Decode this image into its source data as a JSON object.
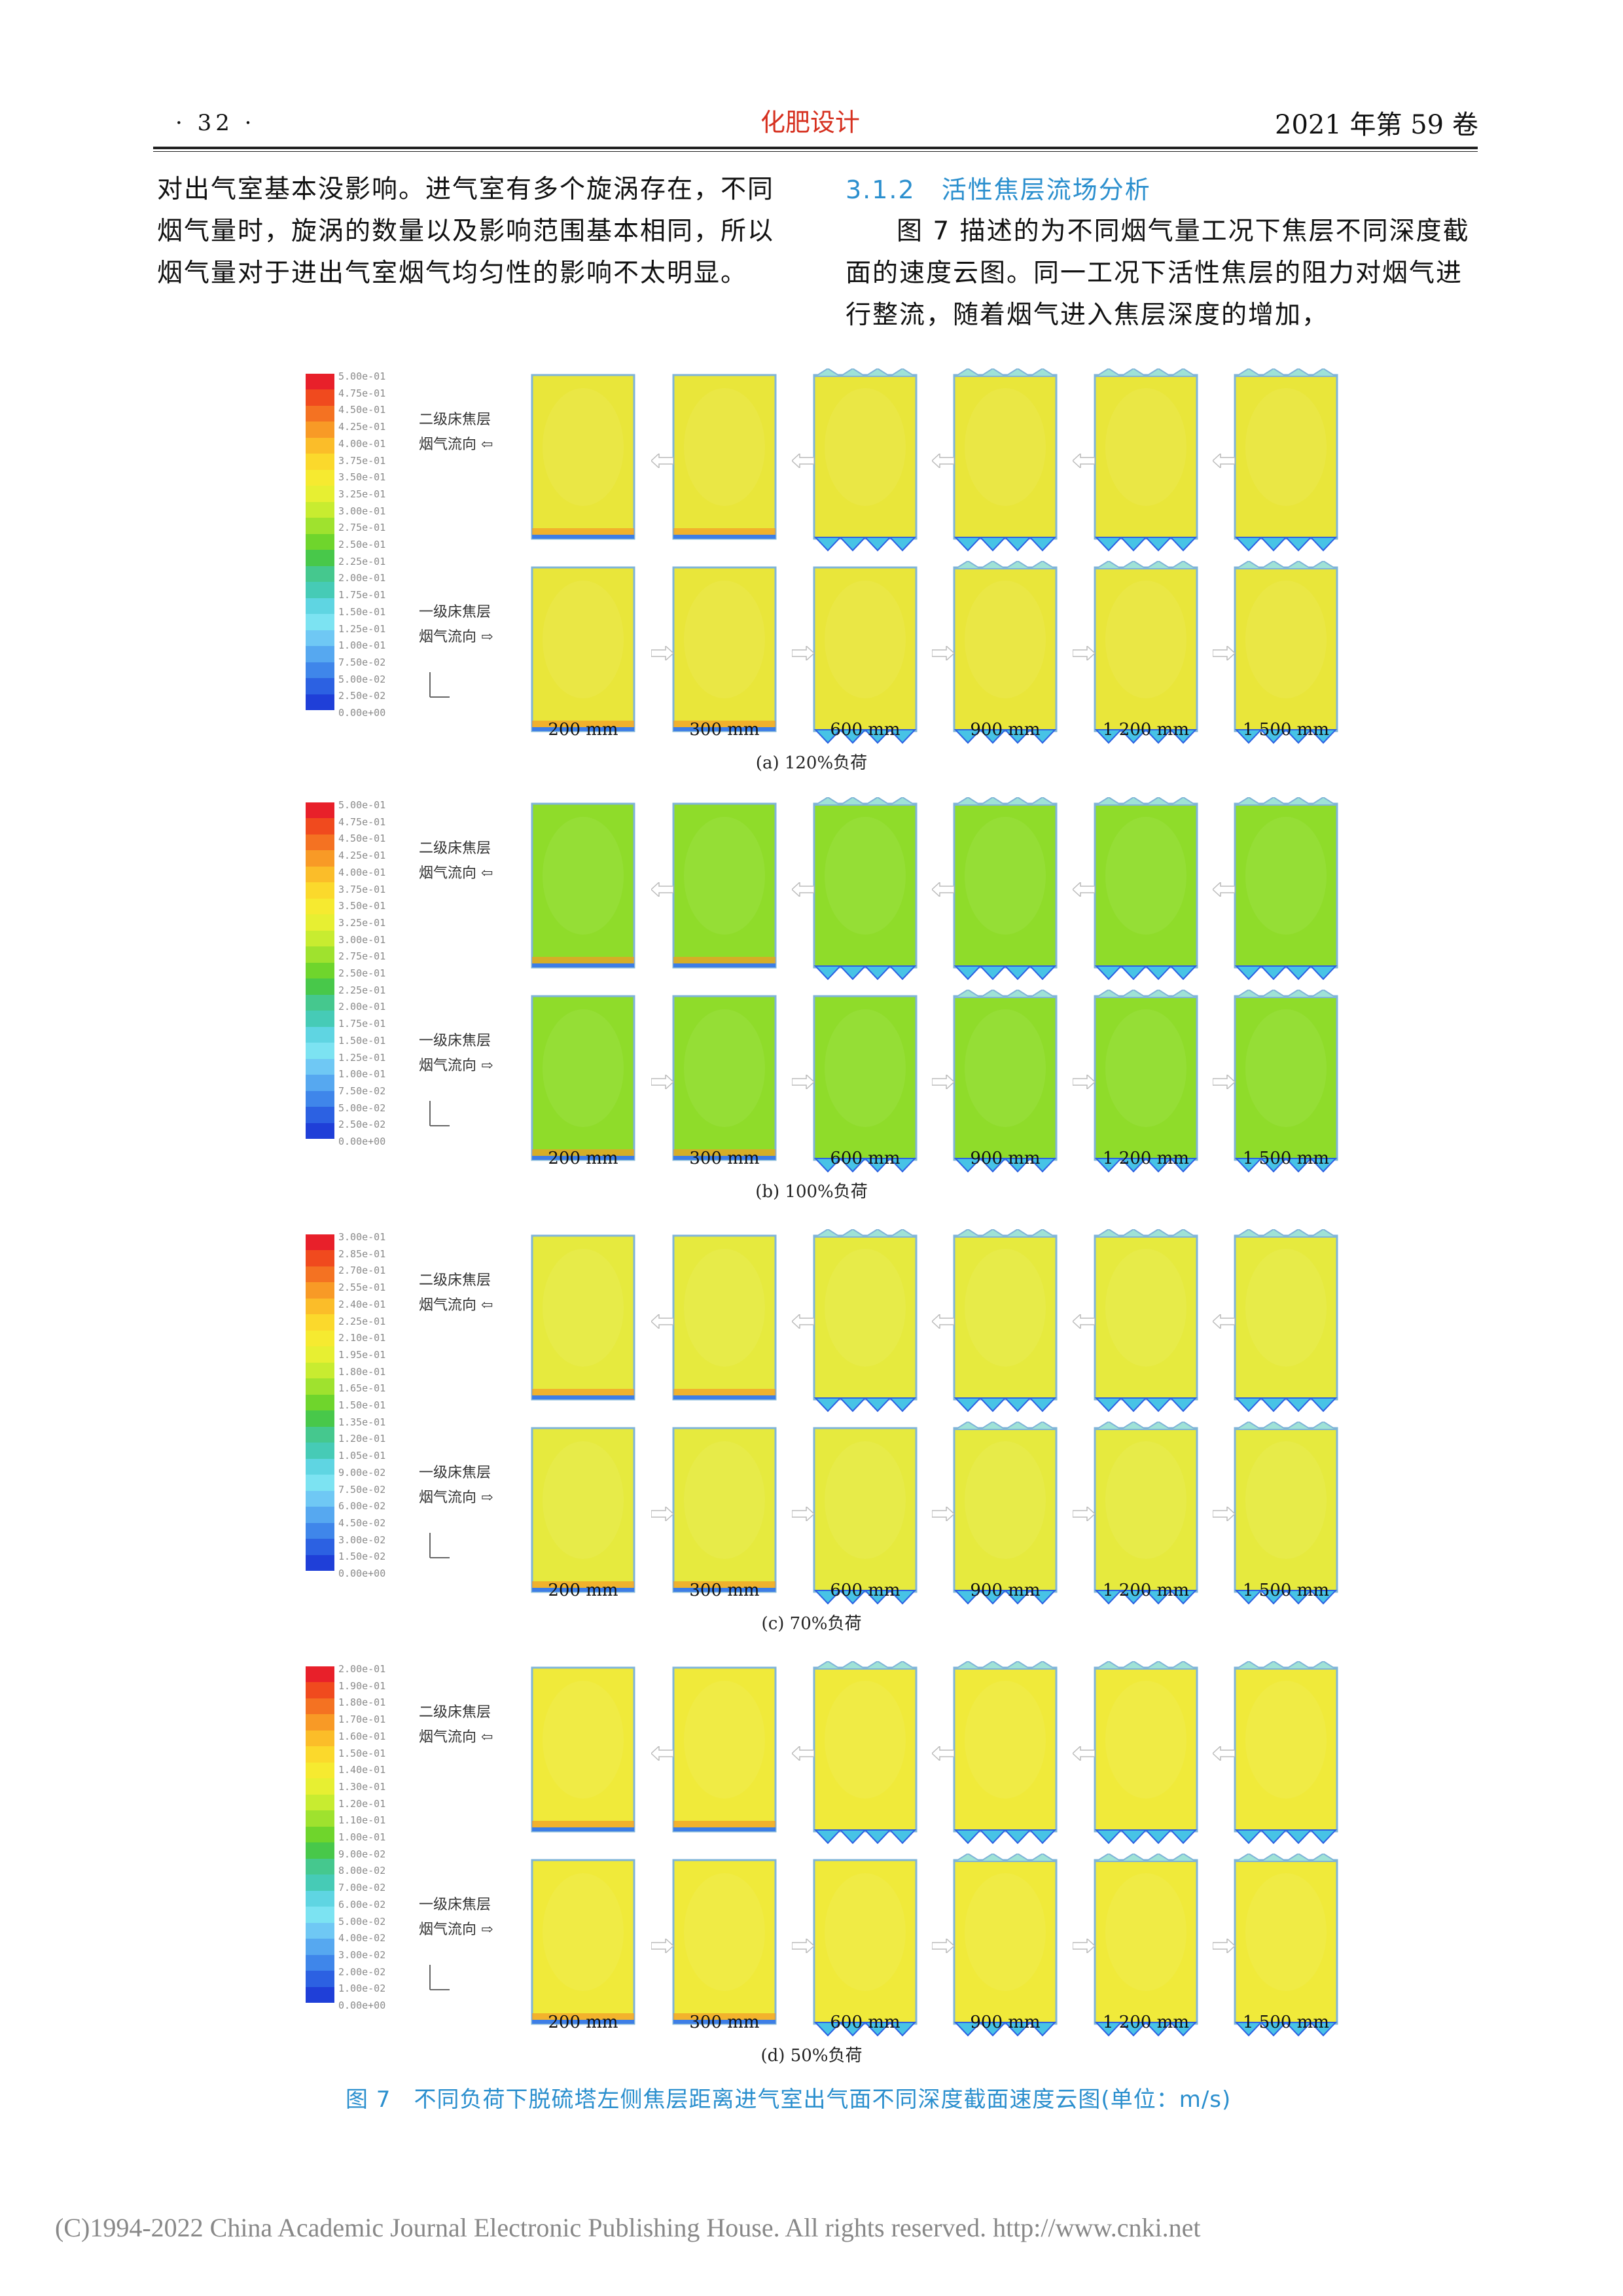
{
  "header": {
    "page_number": "· 32 ·",
    "journal": "化肥设计",
    "volume": "2021 年第 59 卷"
  },
  "left_column": {
    "paragraph": "对出气室基本没影响。进气室有多个旋涡存在，不同烟气量时，旋涡的数量以及影响范围基本相同，所以烟气量对于进出气室烟气均匀性的影响不太明显。"
  },
  "right_column": {
    "section_number": "3.1.2",
    "section_title": "活性焦层流场分析",
    "paragraph": "图 7 描述的为不同烟气量工况下焦层不同深度截面的速度云图。同一工况下活性焦层的阻力对烟气进行整流，随着烟气进入焦层深度的增加，"
  },
  "figure": {
    "row_labels": {
      "upper_line1": "二级床焦层",
      "upper_line2": "烟气流向",
      "lower_line1": "一级床焦层",
      "lower_line2": "烟气流向"
    },
    "depths": [
      "200 mm",
      "300 mm",
      "600 mm",
      "900 mm",
      "1 200 mm",
      "1 500 mm"
    ],
    "panels": [
      {
        "caption": "(a) 120%负荷",
        "legend": [
          "5.00e-01",
          "4.75e-01",
          "4.50e-01",
          "4.25e-01",
          "4.00e-01",
          "3.75e-01",
          "3.50e-01",
          "3.25e-01",
          "3.00e-01",
          "2.75e-01",
          "2.50e-01",
          "2.25e-01",
          "2.00e-01",
          "1.75e-01",
          "1.50e-01",
          "1.25e-01",
          "1.00e-01",
          "7.50e-02",
          "5.00e-02",
          "2.50e-02",
          "0.00e+00"
        ],
        "fill": "#e9e63a"
      },
      {
        "caption": "(b) 100%负荷",
        "legend": [
          "5.00e-01",
          "4.75e-01",
          "4.50e-01",
          "4.25e-01",
          "4.00e-01",
          "3.75e-01",
          "3.50e-01",
          "3.25e-01",
          "3.00e-01",
          "2.75e-01",
          "2.50e-01",
          "2.25e-01",
          "2.00e-01",
          "1.75e-01",
          "1.50e-01",
          "1.25e-01",
          "1.00e-01",
          "7.50e-02",
          "5.00e-02",
          "2.50e-02",
          "0.00e+00"
        ],
        "fill": "#8fdc2a"
      },
      {
        "caption": "(c) 70%负荷",
        "legend": [
          "3.00e-01",
          "2.85e-01",
          "2.70e-01",
          "2.55e-01",
          "2.40e-01",
          "2.25e-01",
          "2.10e-01",
          "1.95e-01",
          "1.80e-01",
          "1.65e-01",
          "1.50e-01",
          "1.35e-01",
          "1.20e-01",
          "1.05e-01",
          "9.00e-02",
          "7.50e-02",
          "6.00e-02",
          "4.50e-02",
          "3.00e-02",
          "1.50e-02",
          "0.00e+00"
        ],
        "fill": "#e6ea3e"
      },
      {
        "caption": "(d) 50%负荷",
        "legend": [
          "2.00e-01",
          "1.90e-01",
          "1.80e-01",
          "1.70e-01",
          "1.60e-01",
          "1.50e-01",
          "1.40e-01",
          "1.30e-01",
          "1.20e-01",
          "1.10e-01",
          "1.00e-01",
          "9.00e-02",
          "8.00e-02",
          "7.00e-02",
          "6.00e-02",
          "5.00e-02",
          "4.00e-02",
          "3.00e-02",
          "2.00e-02",
          "1.00e-02",
          "0.00e+00"
        ],
        "fill": "#f0ea3a"
      }
    ],
    "caption": "图 7　不同负荷下脱硫塔左侧焦层距离进气室出气面不同深度截面速度云图(单位：m/s)"
  },
  "footer": "(C)1994-2022 China Academic Journal Electronic Publishing House. All rights reserved.    http://www.cnki.net"
}
